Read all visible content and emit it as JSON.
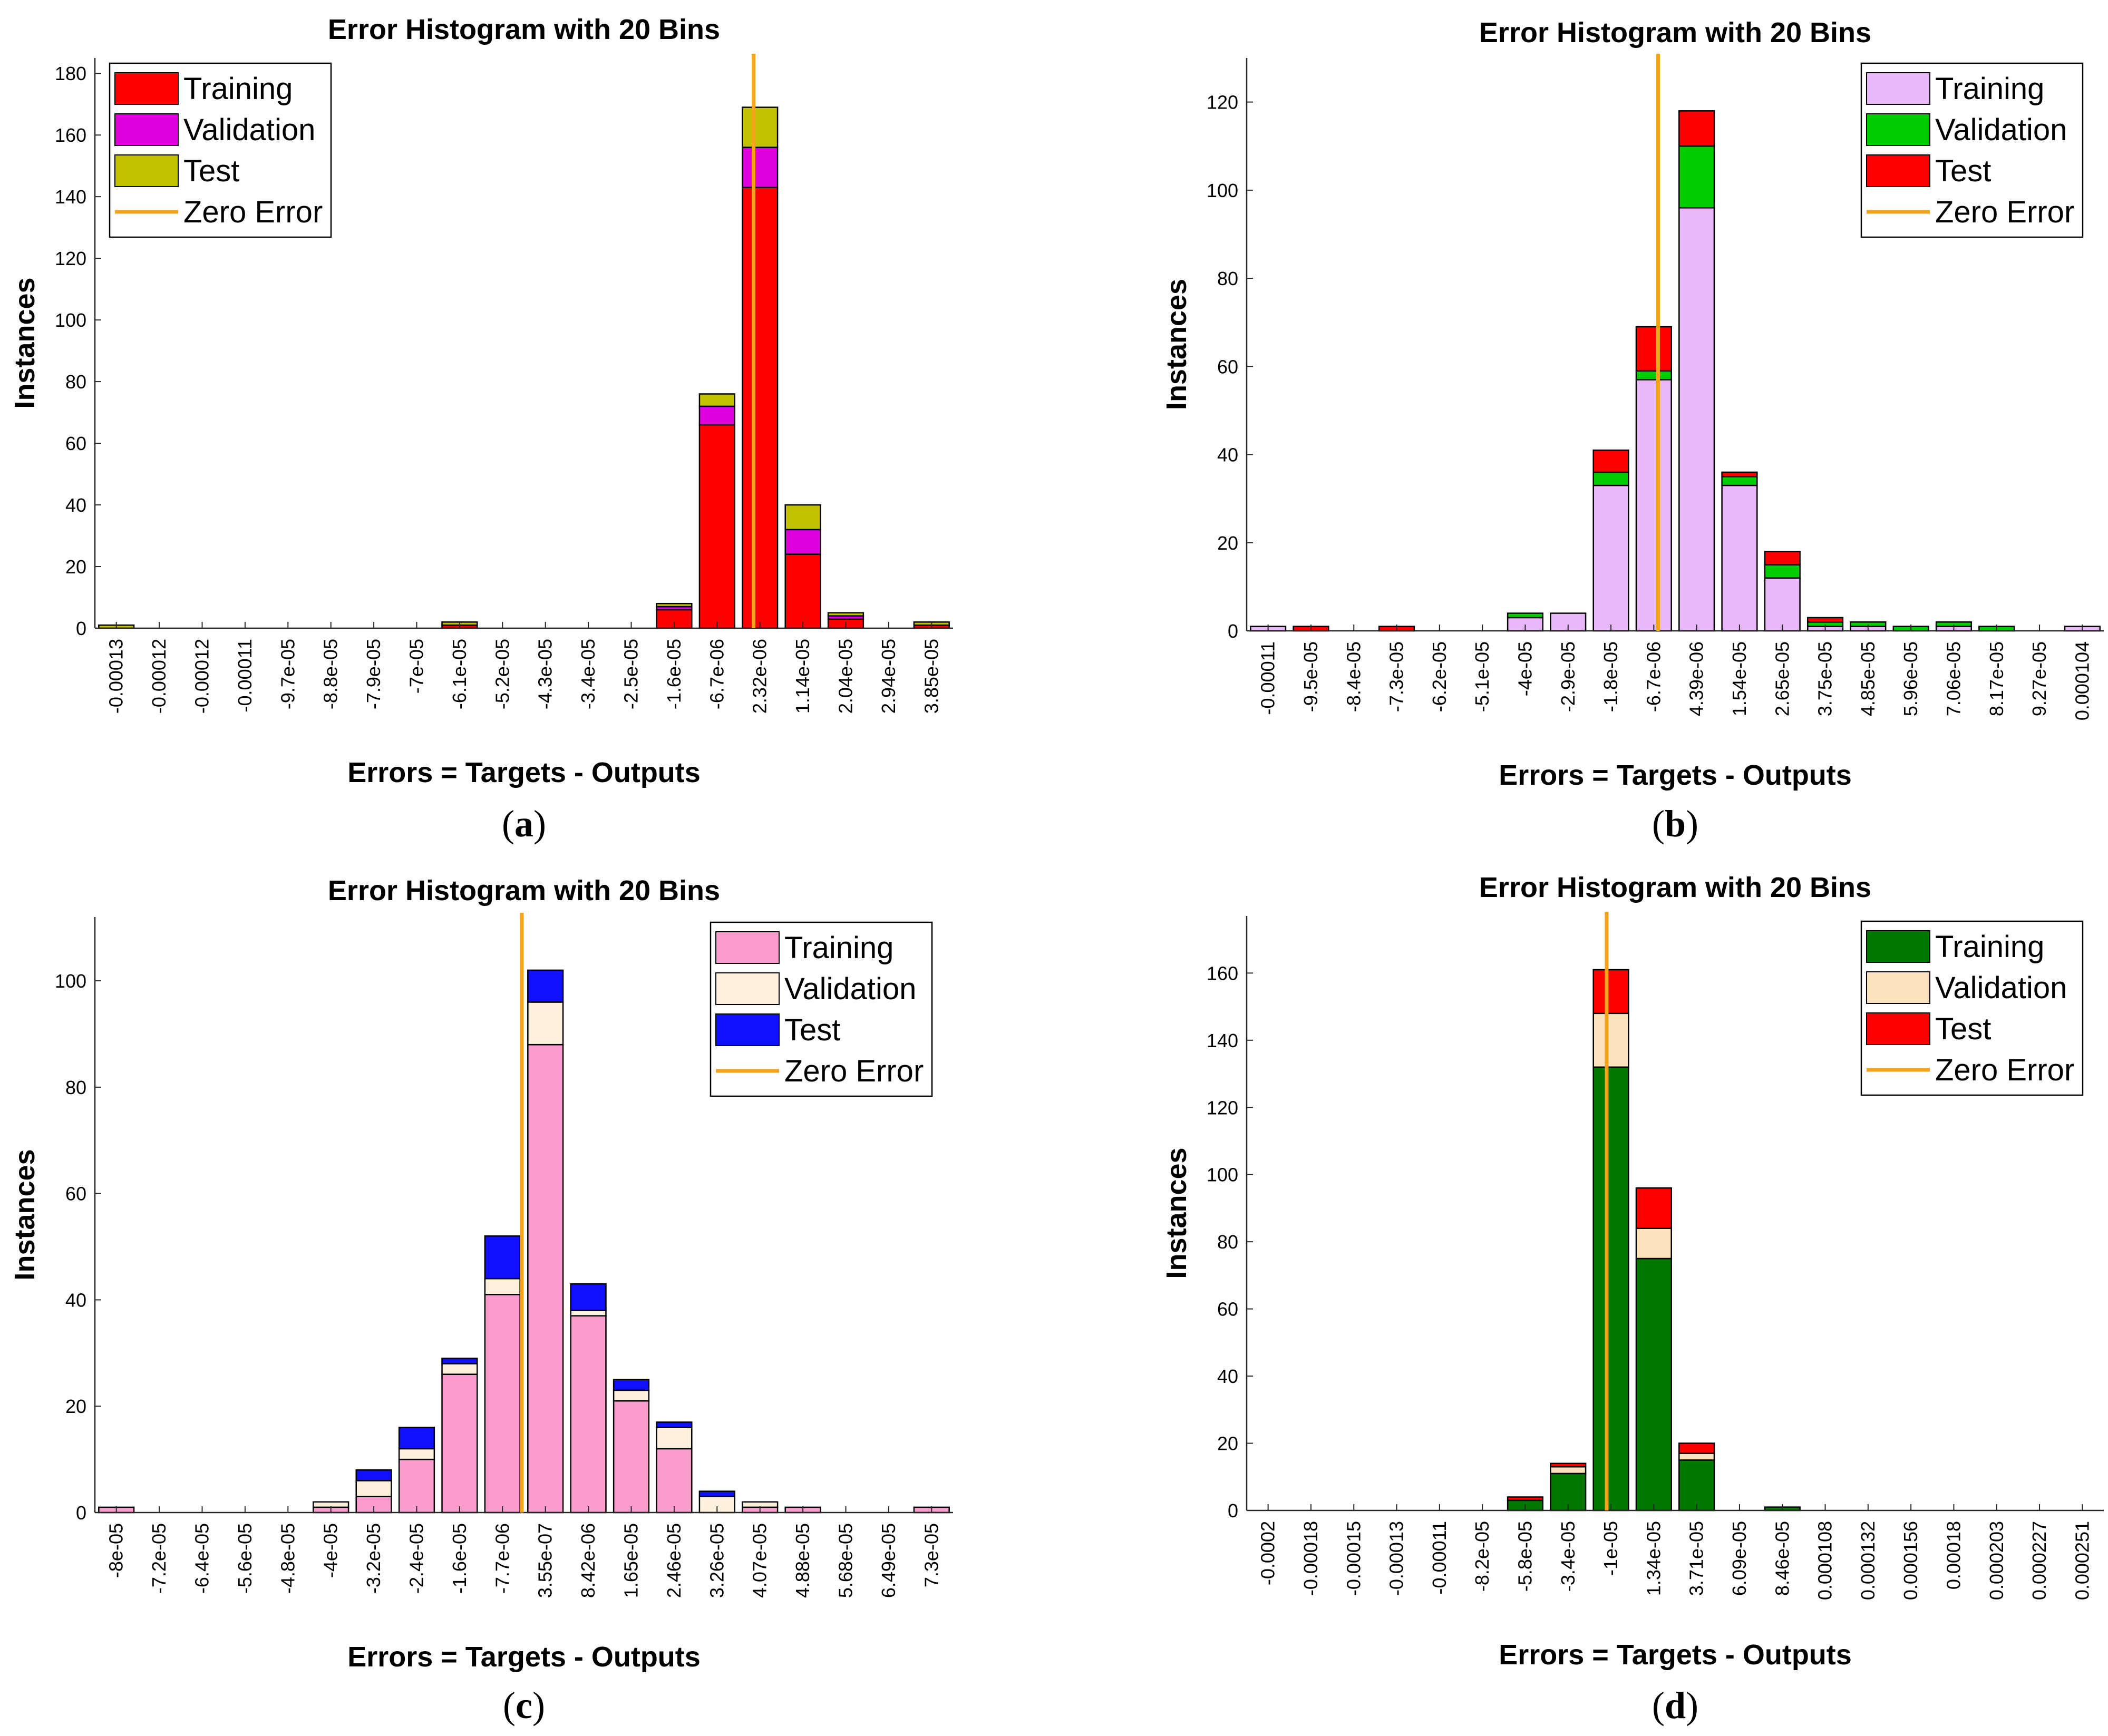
{
  "colors": {
    "zero_line": "#f5a31a",
    "axis": "#262626"
  },
  "chart_data": [
    {
      "panel_label": "a",
      "type": "bar",
      "stacked": true,
      "title": "Error Histogram with 20 Bins",
      "xlabel": "Errors = Targets - Outputs",
      "ylabel": "Instances",
      "ylim": [
        0,
        185
      ],
      "yticks": [
        0,
        20,
        40,
        60,
        80,
        100,
        120,
        140,
        160,
        180
      ],
      "categories": [
        "-0.00013",
        "-0.00012",
        "-0.00012",
        "-0.00011",
        "-9.7e-05",
        "-8.8e-05",
        "-7.9e-05",
        "-7e-05",
        "-6.1e-05",
        "-5.2e-05",
        "-4.3e-05",
        "-3.4e-05",
        "-2.5e-05",
        "-1.6e-05",
        "-6.7e-06",
        "2.32e-06",
        "1.14e-05",
        "2.04e-05",
        "2.94e-05",
        "3.85e-05"
      ],
      "zero_error_position": 15.35,
      "legend_position": "top-left",
      "series": [
        {
          "name": "Training",
          "color": "#ff0000",
          "values": [
            0,
            0,
            0,
            0,
            0,
            0,
            0,
            0,
            1,
            0,
            0,
            0,
            0,
            6,
            66,
            143,
            24,
            3,
            0,
            1
          ]
        },
        {
          "name": "Validation",
          "color": "#de00de",
          "values": [
            0,
            0,
            0,
            0,
            0,
            0,
            0,
            0,
            0,
            0,
            0,
            0,
            0,
            1,
            6,
            13,
            8,
            1,
            0,
            0
          ]
        },
        {
          "name": "Test",
          "color": "#c2c200",
          "values": [
            1,
            0,
            0,
            0,
            0,
            0,
            0,
            0,
            1,
            0,
            0,
            0,
            0,
            1,
            4,
            13,
            8,
            1,
            0,
            1
          ]
        }
      ],
      "zero_label": "Zero Error"
    },
    {
      "panel_label": "b",
      "type": "bar",
      "stacked": true,
      "title": "Error Histogram with 20 Bins",
      "xlabel": "Errors = Targets - Outputs",
      "ylabel": "Instances",
      "ylim": [
        0,
        130
      ],
      "yticks": [
        0,
        20,
        40,
        60,
        80,
        100,
        120
      ],
      "categories": [
        "-0.00011",
        "-9.5e-05",
        "-8.4e-05",
        "-7.3e-05",
        "-6.2e-05",
        "-5.1e-05",
        "-4e-05",
        "-2.9e-05",
        "-1.8e-05",
        "-6.7e-06",
        "4.39e-06",
        "1.54e-05",
        "2.65e-05",
        "3.75e-05",
        "4.85e-05",
        "5.96e-05",
        "7.06e-05",
        "8.17e-05",
        "9.27e-05",
        "0.000104"
      ],
      "zero_error_position": 9.6,
      "legend_position": "top-right",
      "series": [
        {
          "name": "Training",
          "color": "#e8b8f8",
          "values": [
            1,
            0,
            0,
            0,
            0,
            0,
            3,
            4,
            33,
            57,
            96,
            33,
            12,
            1,
            1,
            0,
            1,
            0,
            0,
            1
          ]
        },
        {
          "name": "Validation",
          "color": "#00cc00",
          "values": [
            0,
            0,
            0,
            0,
            0,
            0,
            1,
            0,
            3,
            2,
            14,
            2,
            3,
            1,
            1,
            1,
            1,
            1,
            0,
            0
          ]
        },
        {
          "name": "Test",
          "color": "#ff0000",
          "values": [
            0,
            1,
            0,
            1,
            0,
            0,
            0,
            0,
            5,
            10,
            8,
            1,
            3,
            1,
            0,
            0,
            0,
            0,
            0,
            0
          ]
        }
      ],
      "zero_label": "Zero Error"
    },
    {
      "panel_label": "c",
      "type": "bar",
      "stacked": true,
      "title": "Error Histogram with 20 Bins",
      "xlabel": "Errors = Targets - Outputs",
      "ylabel": "Instances",
      "ylim": [
        0,
        112
      ],
      "yticks": [
        0,
        20,
        40,
        60,
        80,
        100
      ],
      "categories": [
        "-8e-05",
        "-7.2e-05",
        "-6.4e-05",
        "-5.6e-05",
        "-4.8e-05",
        "-4e-05",
        "-3.2e-05",
        "-2.4e-05",
        "-1.6e-05",
        "-7.7e-06",
        "3.55e-07",
        "8.42e-06",
        "1.65e-05",
        "2.46e-05",
        "3.26e-05",
        "4.07e-05",
        "4.88e-05",
        "5.68e-05",
        "6.49e-05",
        "7.3e-05"
      ],
      "zero_error_position": 9.95,
      "legend_position": "top-right",
      "series": [
        {
          "name": "Training",
          "color": "#fa9ccc",
          "values": [
            1,
            0,
            0,
            0,
            0,
            1,
            3,
            10,
            26,
            41,
            88,
            37,
            21,
            12,
            0,
            1,
            1,
            0,
            0,
            1
          ]
        },
        {
          "name": "Validation",
          "color": "#fdf0dc",
          "values": [
            0,
            0,
            0,
            0,
            0,
            1,
            3,
            2,
            2,
            3,
            8,
            1,
            2,
            4,
            3,
            1,
            0,
            0,
            0,
            0
          ]
        },
        {
          "name": "Test",
          "color": "#1010ff",
          "values": [
            0,
            0,
            0,
            0,
            0,
            0,
            2,
            4,
            1,
            8,
            6,
            5,
            2,
            1,
            1,
            0,
            0,
            0,
            0,
            0
          ]
        }
      ],
      "zero_label": "Zero Error"
    },
    {
      "panel_label": "d",
      "type": "bar",
      "stacked": true,
      "title": "Error Histogram with 20 Bins",
      "xlabel": "Errors = Targets - Outputs",
      "ylabel": "Instances",
      "ylim": [
        0,
        177
      ],
      "yticks": [
        0,
        20,
        40,
        60,
        80,
        100,
        120,
        140,
        160
      ],
      "categories": [
        "-0.0002",
        "-0.00018",
        "-0.00015",
        "-0.00013",
        "-0.00011",
        "-8.2e-05",
        "-5.8e-05",
        "-3.4e-05",
        "-1e-05",
        "1.34e-05",
        "3.71e-05",
        "6.09e-05",
        "8.46e-05",
        "0.000108",
        "0.000132",
        "0.000156",
        "0.00018",
        "0.000203",
        "0.000227",
        "0.000251"
      ],
      "zero_error_position": 8.4,
      "legend_position": "top-right",
      "series": [
        {
          "name": "Training",
          "color": "#007800",
          "values": [
            0,
            0,
            0,
            0,
            0,
            0,
            3,
            11,
            132,
            75,
            15,
            0,
            1,
            0,
            0,
            0,
            0,
            0,
            0,
            0
          ]
        },
        {
          "name": "Validation",
          "color": "#fde2c0",
          "values": [
            0,
            0,
            0,
            0,
            0,
            0,
            0,
            2,
            16,
            9,
            2,
            0,
            0,
            0,
            0,
            0,
            0,
            0,
            0,
            0
          ]
        },
        {
          "name": "Test",
          "color": "#ff0000",
          "values": [
            0,
            0,
            0,
            0,
            0,
            0,
            1,
            1,
            13,
            12,
            3,
            0,
            0,
            0,
            0,
            0,
            0,
            0,
            0,
            0
          ]
        }
      ],
      "zero_label": "Zero Error"
    }
  ]
}
